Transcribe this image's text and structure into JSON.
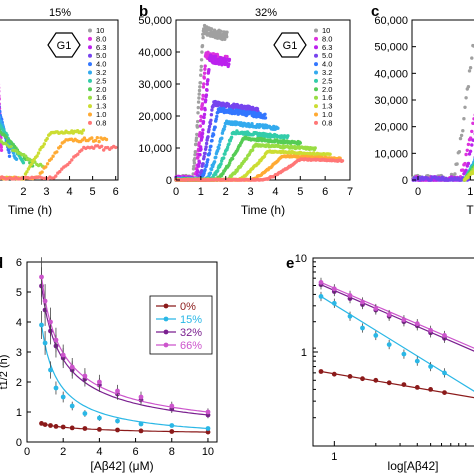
{
  "figure_title": "",
  "panels": [
    {
      "letter": "",
      "title": "15%",
      "badge": "G1",
      "xlabel": "Time (h)",
      "xticks": [
        "2",
        "3",
        "4",
        "5",
        "6"
      ],
      "legend": [
        "10",
        "8.0",
        "6.3",
        "5.0",
        "4.0",
        "3.2",
        "2.5",
        "2.0",
        "1.6",
        "1.3",
        "1.0",
        "0.8"
      ]
    },
    {
      "letter": "b",
      "title": "32%",
      "badge": "G1",
      "xlabel": "Time (h)",
      "xticks": [
        "0",
        "1",
        "2",
        "3",
        "4",
        "5",
        "6",
        "7"
      ],
      "yticks": [
        "0",
        "10,000",
        "20,000",
        "30,000",
        "40,000",
        "50,000"
      ],
      "legend": [
        "10",
        "8.0",
        "6.3",
        "5.0",
        "4.0",
        "3.2",
        "2.5",
        "2.0",
        "1.6",
        "1.3",
        "1.0",
        "0.8"
      ]
    },
    {
      "letter": "c",
      "title": "",
      "xlabel": "T",
      "xticks": [
        "0",
        "1"
      ],
      "yticks": [
        "0",
        "10,000",
        "20,000",
        "30,000",
        "40,000",
        "50,000",
        "60,000"
      ]
    },
    {
      "letter": "d",
      "xlabel": "[Aβ42] (μM)",
      "ylabel": "t1/2 (h)",
      "xticks": [
        "0",
        "2",
        "4",
        "6",
        "8",
        "10"
      ],
      "yticks": [
        "0",
        "1",
        "2",
        "3",
        "4",
        "5",
        "6"
      ],
      "legend": [
        "0%",
        "15%",
        "32%",
        "66%"
      ]
    },
    {
      "letter": "e",
      "xlabel": "log[Aβ42]",
      "xticks": [
        "1"
      ],
      "yticks": [
        "10",
        "1"
      ]
    }
  ],
  "colors": {
    "conc_palette": [
      "#a0a0a0",
      "#dd33dd",
      "#bb22ee",
      "#7744ee",
      "#3377ff",
      "#33aaee",
      "#33ccaa",
      "#55cc55",
      "#99dd44",
      "#ccdd33",
      "#ffaa33",
      "#ff7777"
    ],
    "series": {
      "0%": "#8b1a1a",
      "15%": "#2ab7e6",
      "32%": "#7a1f8f",
      "66%": "#cc55cc"
    }
  },
  "chart_data": [
    {
      "type": "scatter",
      "panel": "a",
      "title": "15%",
      "xlabel": "Time (h)",
      "xlim": [
        0.9,
        6.1
      ],
      "series": [
        {
          "name": "10",
          "plateau": null
        },
        {
          "name": "8.0",
          "plateau": null
        },
        {
          "name": "6.3",
          "plateau": null
        },
        {
          "name": "5.0",
          "plateau": null
        },
        {
          "name": "4.0",
          "plateau": null
        },
        {
          "name": "3.2",
          "plateau": null
        },
        {
          "name": "2.5",
          "plateau": null
        },
        {
          "name": "2.0",
          "plateau": null
        },
        {
          "name": "1.6",
          "plateau": null
        },
        {
          "name": "1.3",
          "plateau": null
        },
        {
          "name": "1.0",
          "plateau": null
        },
        {
          "name": "0.8",
          "plateau": null
        }
      ]
    },
    {
      "type": "scatter",
      "panel": "b",
      "title": "32%",
      "xlabel": "Time (h)",
      "xlim": [
        0,
        7
      ],
      "ylim": [
        0,
        50000
      ],
      "series": [
        {
          "name": "10",
          "start": 0.65,
          "rise_end": 1.1,
          "peak": 47000,
          "end": 2.05
        },
        {
          "name": "8.0",
          "start": 0.75,
          "rise_end": 1.2,
          "peak": 39000,
          "end": 2.05
        },
        {
          "name": "6.3",
          "start": 0.8,
          "rise_end": 1.35,
          "peak": 38000,
          "end": 2.15
        },
        {
          "name": "5.0",
          "start": 0.9,
          "rise_end": 1.5,
          "peak": 24000,
          "end": 3.3
        },
        {
          "name": "4.0",
          "start": 1.0,
          "rise_end": 1.7,
          "peak": 22000,
          "end": 3.6
        },
        {
          "name": "3.2",
          "start": 1.2,
          "rise_end": 2.0,
          "peak": 18000,
          "end": 4.1
        },
        {
          "name": "2.5",
          "start": 1.4,
          "rise_end": 2.3,
          "peak": 15000,
          "end": 4.5
        },
        {
          "name": "2.0",
          "start": 1.6,
          "rise_end": 2.7,
          "peak": 13000,
          "end": 5.0
        },
        {
          "name": "1.6",
          "start": 2.0,
          "rise_end": 3.2,
          "peak": 11000,
          "end": 5.6
        },
        {
          "name": "1.3",
          "start": 2.5,
          "rise_end": 3.7,
          "peak": 9000,
          "end": 6.2
        },
        {
          "name": "1.0",
          "start": 3.0,
          "rise_end": 4.3,
          "peak": 7500,
          "end": 6.6
        },
        {
          "name": "0.8",
          "start": 3.5,
          "rise_end": 5.0,
          "peak": 6500,
          "end": 6.7
        }
      ]
    },
    {
      "type": "scatter",
      "panel": "c",
      "xlim": [
        0,
        1.2
      ],
      "ylim": [
        0,
        60000
      ],
      "series": [
        {
          "name": "10",
          "start": 0.7,
          "rise_end": 1.05,
          "peak": 52000
        },
        {
          "name": "8.0",
          "start": 0.8,
          "rise_end": 1.15,
          "peak": 33000
        },
        {
          "name": "6.3",
          "start": 0.85,
          "rise_end": 1.2,
          "peak": 30000
        },
        {
          "name": "5.0",
          "start": 0.95,
          "rise_end": 1.3,
          "peak": 28000
        }
      ]
    },
    {
      "type": "scatter",
      "panel": "d",
      "xlabel": "[Aβ42] (μM)",
      "ylabel": "t1/2 (h)",
      "xlim": [
        0,
        10.5
      ],
      "ylim": [
        0,
        6
      ],
      "legend_position": "center-right",
      "x": [
        0.8,
        1.0,
        1.3,
        1.6,
        2.0,
        2.5,
        3.2,
        4.0,
        5.0,
        6.3,
        8.0,
        10.0
      ],
      "series": [
        {
          "name": "0%",
          "values": [
            0.62,
            0.58,
            0.55,
            0.52,
            0.5,
            0.47,
            0.45,
            0.42,
            0.4,
            0.37,
            0.35,
            0.33
          ]
        },
        {
          "name": "15%",
          "values": [
            3.9,
            3.3,
            2.4,
            1.8,
            1.5,
            1.2,
            0.95,
            0.8,
            0.7,
            0.6,
            0.55,
            0.45
          ]
        },
        {
          "name": "32%",
          "values": [
            5.2,
            4.4,
            3.7,
            3.2,
            2.8,
            2.4,
            2.1,
            1.9,
            1.6,
            1.4,
            1.1,
            0.9
          ]
        },
        {
          "name": "66%",
          "values": [
            5.5,
            4.7,
            4.0,
            3.4,
            2.9,
            2.5,
            2.2,
            2.0,
            1.7,
            1.5,
            1.2,
            1.0
          ]
        }
      ]
    },
    {
      "type": "scatter",
      "panel": "e",
      "xlabel": "log[Aβ42]",
      "log_x": true,
      "log_y": true,
      "xlim": [
        0.7,
        12
      ],
      "ylim": [
        0.1,
        10
      ],
      "x": [
        0.8,
        1.0,
        1.3,
        1.6,
        2.0,
        2.5,
        3.2,
        4.0,
        5.0,
        6.3
      ],
      "series": [
        {
          "name": "0%",
          "values": [
            0.62,
            0.58,
            0.55,
            0.52,
            0.5,
            0.47,
            0.45,
            0.42,
            0.4,
            0.37
          ]
        },
        {
          "name": "15%",
          "values": [
            3.9,
            3.3,
            2.4,
            1.8,
            1.5,
            1.2,
            0.95,
            0.8,
            0.7,
            0.6
          ]
        },
        {
          "name": "32%",
          "values": [
            5.2,
            4.4,
            3.7,
            3.2,
            2.8,
            2.4,
            2.1,
            1.9,
            1.6,
            1.4
          ]
        },
        {
          "name": "66%",
          "values": [
            5.5,
            4.7,
            4.0,
            3.4,
            2.9,
            2.5,
            2.2,
            2.0,
            1.7,
            1.5
          ]
        }
      ]
    }
  ]
}
